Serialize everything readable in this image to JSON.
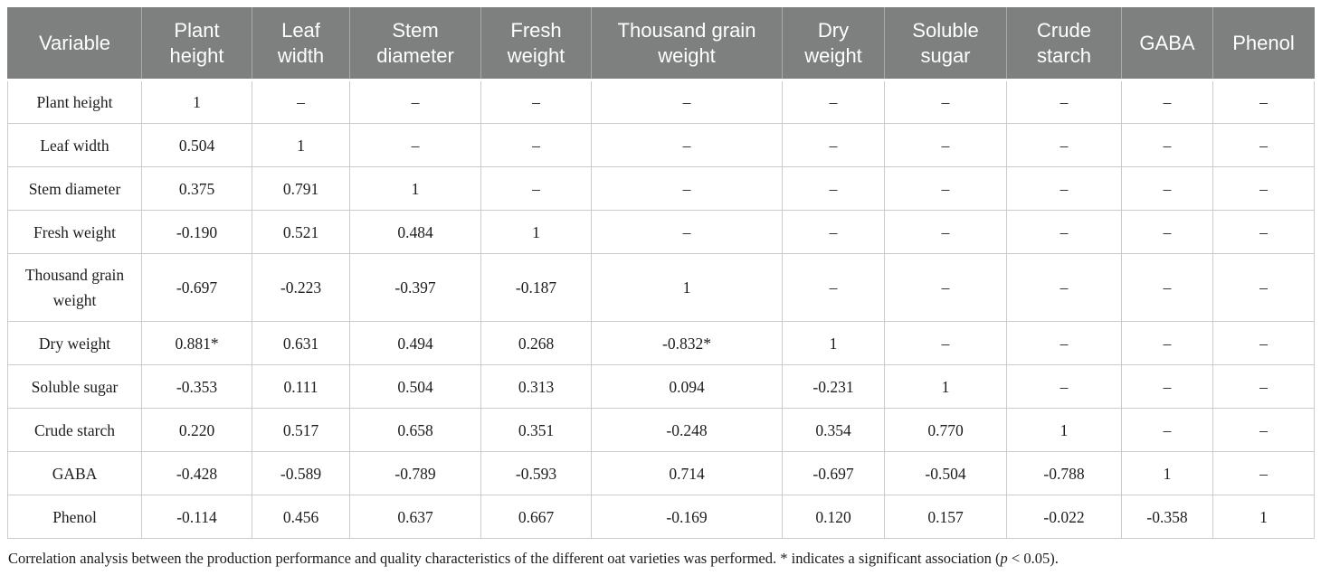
{
  "table": {
    "columns": [
      "Variable",
      "Plant height",
      "Leaf width",
      "Stem diameter",
      "Fresh weight",
      "Thousand grain weight",
      "Dry weight",
      "Soluble sugar",
      "Crude starch",
      "GABA",
      "Phenol"
    ],
    "rows": [
      {
        "label": "Plant height",
        "values": [
          "1",
          "–",
          "–",
          "–",
          "–",
          "–",
          "–",
          "–",
          "–",
          "–"
        ]
      },
      {
        "label": "Leaf width",
        "values": [
          "0.504",
          "1",
          "–",
          "–",
          "–",
          "–",
          "–",
          "–",
          "–",
          "–"
        ]
      },
      {
        "label": "Stem diameter",
        "values": [
          "0.375",
          "0.791",
          "1",
          "–",
          "–",
          "–",
          "–",
          "–",
          "–",
          "–"
        ]
      },
      {
        "label": "Fresh weight",
        "values": [
          "-0.190",
          "0.521",
          "0.484",
          "1",
          "–",
          "–",
          "–",
          "–",
          "–",
          "–"
        ]
      },
      {
        "label": "Thousand grain weight",
        "values": [
          "-0.697",
          "-0.223",
          "-0.397",
          "-0.187",
          "1",
          "–",
          "–",
          "–",
          "–",
          "–"
        ]
      },
      {
        "label": "Dry weight",
        "values": [
          "0.881*",
          "0.631",
          "0.494",
          "0.268",
          "-0.832*",
          "1",
          "–",
          "–",
          "–",
          "–"
        ]
      },
      {
        "label": "Soluble sugar",
        "values": [
          "-0.353",
          "0.111",
          "0.504",
          "0.313",
          "0.094",
          "-0.231",
          "1",
          "–",
          "–",
          "–"
        ]
      },
      {
        "label": "Crude starch",
        "values": [
          "0.220",
          "0.517",
          "0.658",
          "0.351",
          "-0.248",
          "0.354",
          "0.770",
          "1",
          "–",
          "–"
        ]
      },
      {
        "label": "GABA",
        "values": [
          "-0.428",
          "-0.589",
          "-0.789",
          "-0.593",
          "0.714",
          "-0.697",
          "-0.504",
          "-0.788",
          "1",
          "–"
        ]
      },
      {
        "label": "Phenol",
        "values": [
          "-0.114",
          "0.456",
          "0.637",
          "0.667",
          "-0.169",
          "0.120",
          "0.157",
          "-0.022",
          "-0.358",
          "1"
        ]
      }
    ]
  },
  "caption": {
    "text_main": "Correlation analysis between the production performance and quality characteristics of the different oat varieties was performed. * indicates a significant association (",
    "p_var": "p",
    "text_end": " < 0.05)."
  },
  "colors": {
    "header_background": "#7d807f",
    "header_text": "#ffffff",
    "body_border": "#cbcbcb",
    "body_text": "#1c1c1c"
  }
}
